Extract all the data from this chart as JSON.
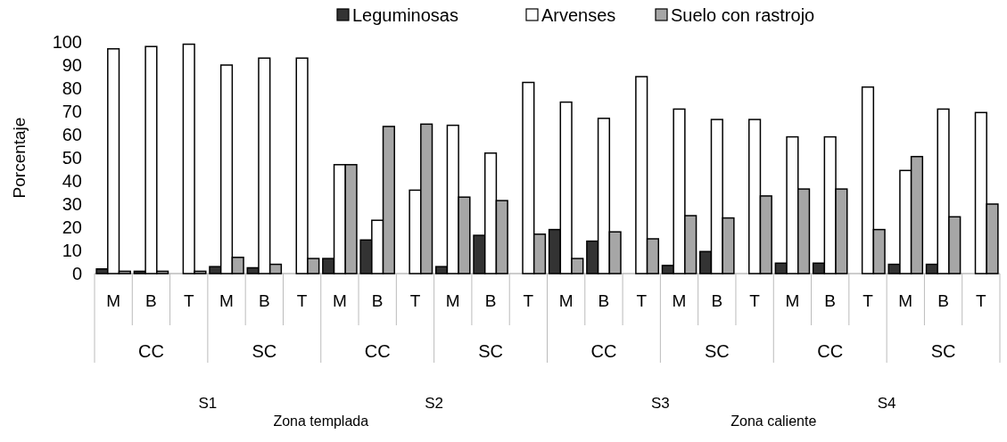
{
  "chart_data": {
    "type": "bar",
    "ylabel": "Porcentaje",
    "categories": [
      "M",
      "B",
      "T",
      "M",
      "B",
      "T",
      "M",
      "B",
      "T",
      "M",
      "B",
      "T",
      "M",
      "B",
      "T",
      "M",
      "B",
      "T",
      "M",
      "B",
      "T",
      "M",
      "B",
      "T"
    ],
    "series": [
      {
        "name": "Leguminosas",
        "color": "#333333",
        "values": [
          2,
          1,
          0,
          3,
          2.5,
          0,
          6.5,
          14.5,
          0,
          3,
          16.5,
          0,
          19,
          14,
          0,
          3.5,
          9.5,
          0,
          4.5,
          4.5,
          0,
          4,
          4,
          0
        ]
      },
      {
        "name": "Arvenses",
        "color": "#ffffff",
        "values": [
          97,
          98,
          99,
          90,
          93,
          93,
          47,
          23,
          36,
          64,
          52,
          82.5,
          74,
          67,
          85,
          71,
          66.5,
          66.5,
          59,
          59,
          80.5,
          44.5,
          71,
          69.5
        ]
      },
      {
        "name": "Suelo con rastrojo",
        "color": "#a6a6a6",
        "values": [
          1,
          1,
          1,
          7,
          4,
          6.5,
          47,
          63.5,
          64.5,
          33,
          31.5,
          17,
          6.5,
          18,
          15,
          25,
          24,
          33.5,
          36.5,
          36.5,
          19,
          50.5,
          24.5,
          30
        ]
      }
    ],
    "annotations": [
      "CC",
      "SC",
      "CC",
      "SC",
      "CC",
      "SC",
      "CC",
      "SC",
      "S1",
      "S2",
      "S3",
      "S4",
      "Zona  templada",
      "Zona caliente"
    ],
    "ylim": [
      0,
      100
    ],
    "yticks": [
      0,
      10,
      20,
      30,
      40,
      50,
      60,
      70,
      80,
      90,
      100
    ],
    "grid": false,
    "legend": "top"
  }
}
